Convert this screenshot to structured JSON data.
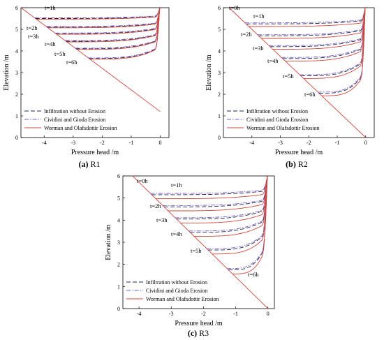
{
  "colors": {
    "no_erosion": "#1f2a44",
    "cividini": "#7b5cd6",
    "worman": "#d2463c",
    "frame": "#000000"
  },
  "chart_data": [
    {
      "type": "line",
      "panel": "R1",
      "caption_prefix": "(a)",
      "caption_name": "R1",
      "xlabel": "Pressure head /m",
      "ylabel": "Elevation /m",
      "xlim": [
        -4.8,
        0.3
      ],
      "ylim": [
        0,
        6
      ],
      "xticks": [
        "-4",
        "-3",
        "-2",
        "-1",
        "0"
      ],
      "yticks": [
        "0",
        "1",
        "2",
        "3",
        "4",
        "5",
        "6"
      ],
      "legend": [
        "Infiltration without Erosion",
        "Cividini and Gioda  Erosion",
        "Worman and Olafsdottir Erosion"
      ],
      "legend_position": "bottom-left",
      "series": [
        {
          "name": "Infiltration without Erosion",
          "style": "dashed",
          "offset": 0
        },
        {
          "name": "Cividini and Gioda  Erosion",
          "style": "dashdot",
          "offset": 0.03
        },
        {
          "name": "Worman and Olafsdottir Erosion",
          "style": "solid",
          "offset": -0.03
        }
      ],
      "time_labels": [
        "t=1h",
        "t=2h",
        "t=3h",
        "t=4h",
        "t=5h",
        "t=6h"
      ],
      "fronts": [
        5.5,
        5.1,
        4.8,
        4.45,
        4.1,
        3.65
      ],
      "boundary_line": [
        [
          -4.8,
          6
        ],
        [
          0,
          1.2
        ]
      ]
    },
    {
      "type": "line",
      "panel": "R2",
      "caption_prefix": "(b)",
      "caption_name": "R2",
      "xlabel": "Pressure head /m",
      "ylabel": "Elevation /m",
      "xlim": [
        -5.0,
        0.3
      ],
      "ylim": [
        0,
        6
      ],
      "xticks": [
        "-4",
        "-3",
        "-2",
        "-1",
        "0"
      ],
      "yticks": [
        "0",
        "1",
        "2",
        "3",
        "4",
        "5",
        "6"
      ],
      "legend": [
        "Infiltration without Erosion",
        "Cividini and Gioda  Erosion",
        "Worman and Olafsdottir Erosion"
      ],
      "legend_position": "bottom-left",
      "series": [
        {
          "name": "Infiltration without Erosion",
          "style": "dashed",
          "offset": 0
        },
        {
          "name": "Cividini and Gioda  Erosion",
          "style": "dashdot",
          "offset": 0.05
        },
        {
          "name": "Worman and Olafsdottir Erosion",
          "style": "solid",
          "offset": -0.12
        }
      ],
      "time_labels": [
        "t=0h",
        "t=1h",
        "t=2h",
        "t=3h",
        "t=4h",
        "t=5h",
        "t=6h"
      ],
      "fronts": [
        5.25,
        4.7,
        4.2,
        3.65,
        2.85,
        2.05
      ],
      "boundary_line": [
        [
          -4.8,
          6
        ],
        [
          0,
          0
        ]
      ]
    },
    {
      "type": "line",
      "panel": "R3",
      "caption_prefix": "(c)",
      "caption_name": "R3",
      "xlabel": "Pressure head /m",
      "ylabel": "Elevation /m",
      "xlim": [
        -4.5,
        0.2
      ],
      "ylim": [
        0,
        6
      ],
      "xticks": [
        "-4",
        "-3",
        "-2",
        "-1",
        "0"
      ],
      "yticks": [
        "0",
        "1",
        "2",
        "3",
        "4",
        "5",
        "6"
      ],
      "legend": [
        "Infiltration without Erosion",
        "Cividini and Gioda  Erosion",
        "Worman and Olafsdottir Erosion"
      ],
      "legend_position": "bottom-left",
      "series": [
        {
          "name": "Infiltration without Erosion",
          "style": "dashed",
          "offset": 0
        },
        {
          "name": "Cividini and Gioda  Erosion",
          "style": "dashdot",
          "offset": 0.06
        },
        {
          "name": "Worman and Olafsdottir Erosion",
          "style": "solid",
          "offset": -0.18
        }
      ],
      "time_labels": [
        "t=0h",
        "t=1h",
        "t=2h",
        "t=3h",
        "t=4h",
        "t=5h",
        "t=6h"
      ],
      "fronts": [
        5.15,
        4.6,
        4.05,
        3.45,
        2.65,
        1.75
      ],
      "boundary_line": [
        [
          -4.2,
          6
        ],
        [
          0,
          0
        ]
      ]
    }
  ]
}
